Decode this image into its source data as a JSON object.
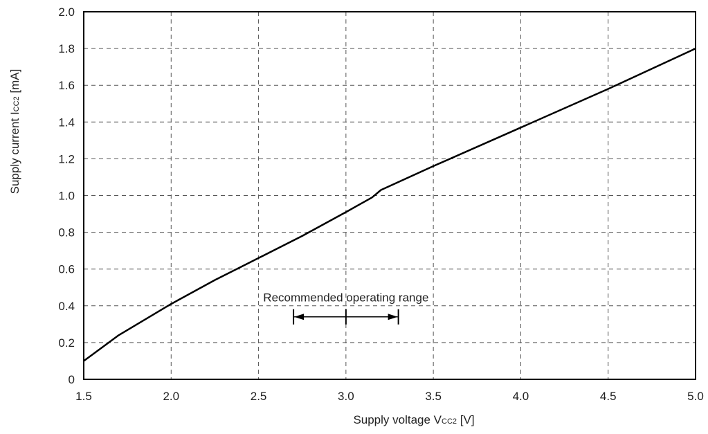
{
  "chart_data": {
    "type": "line",
    "xlabel": {
      "main": "Supply voltage  V",
      "sub": "CC2",
      "unit": " [V]"
    },
    "ylabel": {
      "main": "Supply current  I",
      "sub": "CC2",
      "unit": " [mA]"
    },
    "xlim": [
      1.5,
      5.0
    ],
    "ylim": [
      0,
      2.0
    ],
    "x_ticks": [
      1.5,
      2.0,
      2.5,
      3.0,
      3.5,
      4.0,
      4.5,
      5.0
    ],
    "x_tick_labels": [
      "1.5",
      "2.0",
      "2.5",
      "3.0",
      "3.5",
      "4.0",
      "4.5",
      "5.0"
    ],
    "y_ticks": [
      0,
      0.2,
      0.4,
      0.6,
      0.8,
      1.0,
      1.2,
      1.4,
      1.6,
      1.8,
      2.0
    ],
    "y_tick_labels": [
      "0",
      "0.2",
      "0.4",
      "0.6",
      "0.8",
      "1.0",
      "1.2",
      "1.4",
      "1.6",
      "1.8",
      "2.0"
    ],
    "grid": true,
    "series": [
      {
        "color": "#000000",
        "x": [
          1.5,
          1.7,
          2.0,
          2.25,
          2.5,
          2.75,
          3.0,
          3.15,
          3.2,
          3.5,
          4.0,
          4.5,
          5.0
        ],
        "y": [
          0.1,
          0.24,
          0.41,
          0.54,
          0.66,
          0.78,
          0.91,
          0.99,
          1.03,
          1.16,
          1.37,
          1.58,
          1.8
        ]
      }
    ],
    "annotations": [
      {
        "text": "Recommended operating range",
        "range_start": 2.7,
        "range_center": 3.0,
        "range_end": 3.3,
        "y": 0.34
      }
    ]
  }
}
